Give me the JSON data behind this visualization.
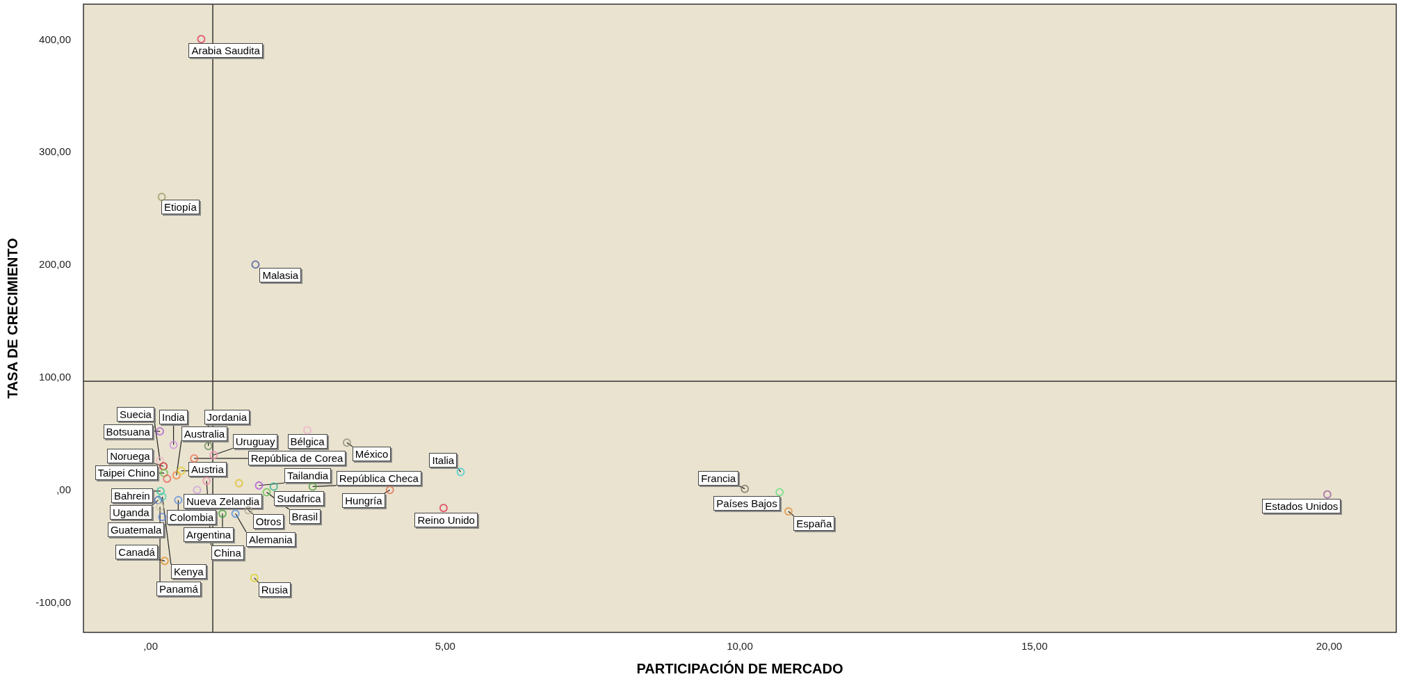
{
  "chart_data": {
    "type": "scatter",
    "xlabel": "PARTICIPACIÓN DE MERCADO",
    "ylabel": "TASA DE CRECIMIENTO",
    "marker": "circle",
    "grid": false,
    "xlim": [
      -1.14,
      21.14
    ],
    "ylim": [
      -127,
      431
    ],
    "xticks": [
      {
        "value": 0,
        "label": ",00"
      },
      {
        "value": 5,
        "label": "5,00"
      },
      {
        "value": 10,
        "label": "10,00"
      },
      {
        "value": 15,
        "label": "15,00"
      },
      {
        "value": 20,
        "label": "20,00"
      }
    ],
    "yticks": [
      {
        "value": -100,
        "label": "-100,00"
      },
      {
        "value": 0,
        "label": ",00"
      },
      {
        "value": 100,
        "label": "100,00"
      },
      {
        "value": 200,
        "label": "200,00"
      },
      {
        "value": 300,
        "label": "300,00"
      },
      {
        "value": 400,
        "label": "400,00"
      }
    ],
    "x": [
      0.87,
      0.2,
      1.79,
      0.17,
      0.4,
      0.99,
      0.45,
      1.08,
      0.75,
      0.17,
      0.23,
      0.24,
      0.29,
      0.53,
      0.96,
      0.8,
      0.48,
      0.18,
      0.21,
      0.14,
      0.17,
      0.21,
      0.25,
      1.51,
      1.85,
      2.1,
      1.98,
      1.67,
      1.45,
      1.23,
      1.77,
      2.67,
      3.34,
      2.76,
      4.07,
      5.27,
      4.98,
      10.09,
      10.68,
      10.83,
      19.97
    ],
    "values": [
      400,
      260,
      200,
      52,
      40,
      39,
      13,
      31,
      28,
      26,
      21,
      15,
      10,
      17,
      8,
      0,
      -9,
      -1,
      -6,
      -9,
      -15,
      -24,
      -63,
      6,
      4,
      3,
      -2,
      -18,
      -21,
      -21,
      -78,
      53,
      42,
      3,
      0,
      16,
      -16,
      1,
      -2,
      -19,
      -4
    ],
    "colors": [
      "#e0405a",
      "#999966",
      "#4a5a9a",
      "#b060d0",
      "#d090e0",
      "#709060",
      "#f08040",
      "#f090b0",
      "#f07050",
      "#f0b0c0",
      "#c03030",
      "#70c050",
      "#f06060",
      "#e0d030",
      "#f090b0",
      "#d0a0e0",
      "#6090e0",
      "#30c0a0",
      "#50d0b0",
      "#5070c0",
      "#d0c8a0",
      "#6080d0",
      "#e09030",
      "#e0c030",
      "#b050e0",
      "#30b090",
      "#60c050",
      "#b0a890",
      "#5090e0",
      "#40a040",
      "#e0d020",
      "#f0b0d0",
      "#909080",
      "#50a040",
      "#e07050",
      "#40d0d0",
      "#e03050",
      "#807060",
      "#60e080",
      "#e09040",
      "#a060a0"
    ],
    "ref_lines": [
      {
        "axis": "x",
        "value": 1.05,
        "color": "#333333"
      },
      {
        "axis": "y",
        "value": 96,
        "color": "#333333"
      }
    ],
    "annotations": [
      {
        "text": "Arabia Saudita",
        "x": 0.87,
        "y": 400
      },
      {
        "text": "Etiopía",
        "x": 0.2,
        "y": 260
      },
      {
        "text": "Malasia",
        "x": 1.79,
        "y": 200
      },
      {
        "text": "Botsuana",
        "x": 0.17,
        "y": 52
      },
      {
        "text": "India",
        "x": 0.4,
        "y": 40
      },
      {
        "text": "Jordania",
        "x": 0.99,
        "y": 39
      },
      {
        "text": "Australia",
        "x": 0.45,
        "y": 13
      },
      {
        "text": "Uruguay",
        "x": 1.08,
        "y": 31
      },
      {
        "text": "República de Corea",
        "x": 0.75,
        "y": 28
      },
      {
        "text": "Suecia",
        "x": 0.17,
        "y": 26
      },
      {
        "text": "Noruega",
        "x": 0.23,
        "y": 21
      },
      {
        "text": "Taipei Chino",
        "x": 0.24,
        "y": 15
      },
      {
        "text": "Austria",
        "x": 0.53,
        "y": 17
      },
      {
        "text": "China",
        "x": 0.96,
        "y": 8
      },
      {
        "text": "Nueva Zelandia",
        "x": 0.8,
        "y": 0
      },
      {
        "text": "Colombia",
        "x": 0.48,
        "y": -9
      },
      {
        "text": "Bahrein",
        "x": 0.18,
        "y": -1
      },
      {
        "text": "Kenya",
        "x": 0.21,
        "y": -6
      },
      {
        "text": "Uganda",
        "x": 0.14,
        "y": -9
      },
      {
        "text": "Panamá",
        "x": 0.17,
        "y": -15
      },
      {
        "text": "Guatemala",
        "x": 0.21,
        "y": -24
      },
      {
        "text": "Canadá",
        "x": 0.25,
        "y": -63
      },
      {
        "text": "Tailandia",
        "x": 1.85,
        "y": 4
      },
      {
        "text": "Sudafrica",
        "x": 2.1,
        "y": 3
      },
      {
        "text": "Brasil",
        "x": 1.98,
        "y": -2
      },
      {
        "text": "Otros",
        "x": 1.67,
        "y": -18
      },
      {
        "text": "Alemania",
        "x": 1.45,
        "y": -21
      },
      {
        "text": "Argentina",
        "x": 1.23,
        "y": -21
      },
      {
        "text": "Rusia",
        "x": 1.77,
        "y": -78
      },
      {
        "text": "Bélgica",
        "x": 2.67,
        "y": 53
      },
      {
        "text": "México",
        "x": 3.34,
        "y": 42
      },
      {
        "text": "República Checa",
        "x": 2.76,
        "y": 3
      },
      {
        "text": "Hungría",
        "x": 4.07,
        "y": 0
      },
      {
        "text": "Italia",
        "x": 5.27,
        "y": 16
      },
      {
        "text": "Reino Unido",
        "x": 4.98,
        "y": -16
      },
      {
        "text": "Francia",
        "x": 10.09,
        "y": 1
      },
      {
        "text": "Países Bajos",
        "x": 10.68,
        "y": -2
      },
      {
        "text": "España",
        "x": 10.83,
        "y": -19
      },
      {
        "text": "Estados Unidos",
        "x": 19.97,
        "y": -4
      }
    ]
  }
}
